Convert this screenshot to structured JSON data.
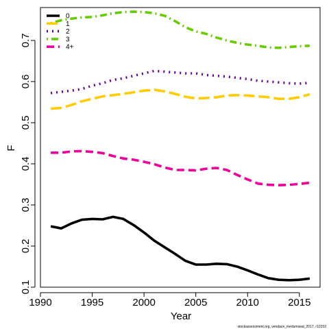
{
  "chart_data": {
    "type": "line",
    "xlabel": "Year",
    "ylabel": "F",
    "xlim": [
      1990,
      2017
    ],
    "ylim": [
      0.1,
      0.78
    ],
    "xticks": [
      1990,
      1995,
      2000,
      2005,
      2010,
      2015
    ],
    "yticks": [
      0.1,
      0.2,
      0.3,
      0.4,
      0.5,
      0.6,
      0.7
    ],
    "ytick_labels": [
      "0.1",
      "0.2",
      "0.3",
      "0.4",
      "0.5",
      "0.6",
      "0.7"
    ],
    "legend_position": "top-left",
    "x": [
      1991,
      1992,
      1993,
      1994,
      1995,
      1996,
      1997,
      1998,
      1999,
      2000,
      2001,
      2002,
      2003,
      2004,
      2005,
      2006,
      2007,
      2008,
      2009,
      2010,
      2011,
      2012,
      2013,
      2014,
      2015,
      2016
    ],
    "series": [
      {
        "name": "0",
        "color": "#000000",
        "dash": "solid",
        "values": [
          0.248,
          0.243,
          0.255,
          0.264,
          0.266,
          0.265,
          0.271,
          0.266,
          0.251,
          0.233,
          0.213,
          0.197,
          0.181,
          0.164,
          0.155,
          0.155,
          0.157,
          0.156,
          0.15,
          0.141,
          0.131,
          0.122,
          0.118,
          0.117,
          0.118,
          0.121
        ]
      },
      {
        "name": "1",
        "color": "#FFCC00",
        "dash": "longdash",
        "values": [
          0.534,
          0.536,
          0.543,
          0.552,
          0.558,
          0.564,
          0.567,
          0.57,
          0.574,
          0.578,
          0.58,
          0.576,
          0.57,
          0.563,
          0.559,
          0.56,
          0.562,
          0.566,
          0.567,
          0.566,
          0.564,
          0.562,
          0.558,
          0.558,
          0.562,
          0.569
        ]
      },
      {
        "name": "2",
        "color": "#660099",
        "dash": "dotted",
        "values": [
          0.572,
          0.575,
          0.578,
          0.582,
          0.59,
          0.596,
          0.604,
          0.608,
          0.614,
          0.62,
          0.626,
          0.624,
          0.622,
          0.62,
          0.62,
          0.616,
          0.614,
          0.612,
          0.609,
          0.606,
          0.602,
          0.6,
          0.598,
          0.596,
          0.595,
          0.597
        ]
      },
      {
        "name": "3",
        "color": "#66CC00",
        "dash": "dotdash",
        "values": [
          0.742,
          0.749,
          0.753,
          0.756,
          0.757,
          0.761,
          0.766,
          0.769,
          0.77,
          0.769,
          0.766,
          0.76,
          0.747,
          0.732,
          0.722,
          0.716,
          0.707,
          0.7,
          0.694,
          0.69,
          0.687,
          0.683,
          0.682,
          0.684,
          0.686,
          0.687
        ]
      },
      {
        "name": "4+",
        "color": "#EE0099",
        "dash": "dashed",
        "values": [
          0.427,
          0.427,
          0.43,
          0.431,
          0.429,
          0.426,
          0.419,
          0.413,
          0.41,
          0.405,
          0.399,
          0.391,
          0.385,
          0.385,
          0.384,
          0.388,
          0.39,
          0.385,
          0.373,
          0.362,
          0.352,
          0.349,
          0.348,
          0.349,
          0.351,
          0.354
        ]
      }
    ]
  },
  "footnote": "stockassessment.org, vendace_medumseal_2017, r10153"
}
